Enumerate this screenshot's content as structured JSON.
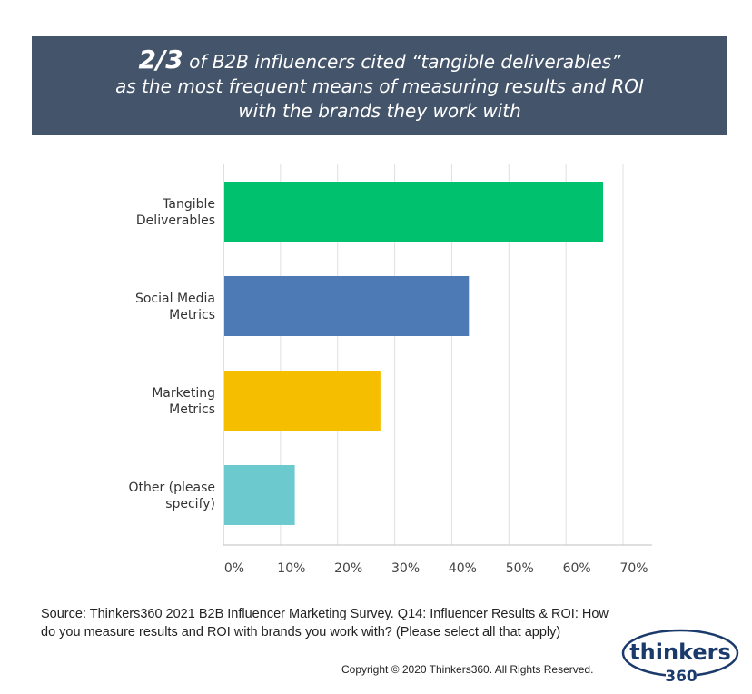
{
  "header": {
    "fraction": "2/3",
    "line1_rest": " of B2B influencers cited “tangible deliverables”",
    "line2": "as the most frequent means of measuring results and ROI",
    "line3": "with the brands they work with"
  },
  "chart_data": {
    "type": "bar",
    "orientation": "horizontal",
    "categories": [
      [
        "Tangible",
        "Deliverables"
      ],
      [
        "Social Media",
        "Metrics"
      ],
      [
        "Marketing",
        "Metrics"
      ],
      [
        "Other (please",
        "specify)"
      ]
    ],
    "values": [
      66.5,
      43,
      27.5,
      12.5
    ],
    "colors": [
      "#00c26e",
      "#4d79b4",
      "#f5bf00",
      "#6ccace"
    ],
    "xlim": [
      0,
      70
    ],
    "ticks": [
      "0%",
      "10%",
      "20%",
      "30%",
      "40%",
      "50%",
      "60%",
      "70%"
    ],
    "grid": true
  },
  "footer": {
    "source": "Source: Thinkers360 2021 B2B Influencer Marketing Survey. Q14: Influencer Results & ROI: How do you measure results and ROI with brands you work with? (Please select all that apply)",
    "copyright": "Copyright © 2020 Thinkers360. All Rights Reserved."
  },
  "logo": {
    "word": "thinkers",
    "number": "360",
    "color": "#1a3a6b"
  }
}
